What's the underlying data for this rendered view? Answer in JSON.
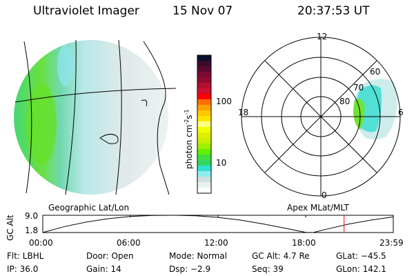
{
  "header": {
    "instrument": "Ultraviolet Imager",
    "date": "15 Nov 07",
    "time": "20:37:53 UT"
  },
  "colorbar": {
    "label": "photon cm",
    "label_sup1": "-2",
    "label_s": "s",
    "label_sup2": "-1",
    "ticks": [
      "100",
      "10"
    ],
    "colors": [
      "#0a0f2d",
      "#3a0a2a",
      "#5a0a30",
      "#7a0a30",
      "#900a30",
      "#b0102f",
      "#d0102f",
      "#ff0000",
      "#ff7000",
      "#ffa000",
      "#ffc800",
      "#ffe600",
      "#ffff80",
      "#f0ff00",
      "#e0f000",
      "#c8f000",
      "#a0f000",
      "#60f000",
      "#40e040",
      "#30d860",
      "#30e0d0",
      "#90ecf0",
      "#d0e0e0",
      "#e8f2ee",
      "#ffffff"
    ]
  },
  "polar": {
    "mlt_labels": {
      "top": "12",
      "left": "18",
      "right": "6",
      "bottom": "0"
    },
    "lat_labels": [
      "60",
      "70",
      "80"
    ]
  },
  "panel_labels": {
    "left": "Geographic Lat/Lon",
    "right": "Apex MLat/MLT"
  },
  "chart_data": {
    "type": "line",
    "title": "",
    "ylabel": "GC Alt",
    "yticks": [
      "9.0",
      "1.8"
    ],
    "ylim": [
      1.8,
      9.0
    ],
    "xticks": [
      "00:00",
      "06:00",
      "12:00",
      "18:00",
      "23:59"
    ],
    "xlim": [
      0,
      24
    ],
    "x": [
      0,
      1.5,
      3,
      4.5,
      6,
      7.5,
      9,
      10.5,
      12,
      13.5,
      15,
      16.5,
      18,
      18.5,
      19.5,
      21,
      22.5,
      23.98
    ],
    "values": [
      1.8,
      4.3,
      6.2,
      7.6,
      8.5,
      8.95,
      9.0,
      8.8,
      8.1,
      7.0,
      5.5,
      3.7,
      1.9,
      1.8,
      3.3,
      5.4,
      7.0,
      8.3
    ],
    "current_time_marker": 20.63,
    "marker_color": "#ff0000"
  },
  "info": [
    [
      "Flt: LBHL",
      "Door: Open",
      "Mode: Normal",
      "GC Alt: 4.7 Re",
      "GLat: −45.5"
    ],
    [
      "IP: 36.0",
      "Gain: 14",
      "Dsp:    −2.9",
      "Seq: 39",
      "GLon: 142.1"
    ]
  ]
}
